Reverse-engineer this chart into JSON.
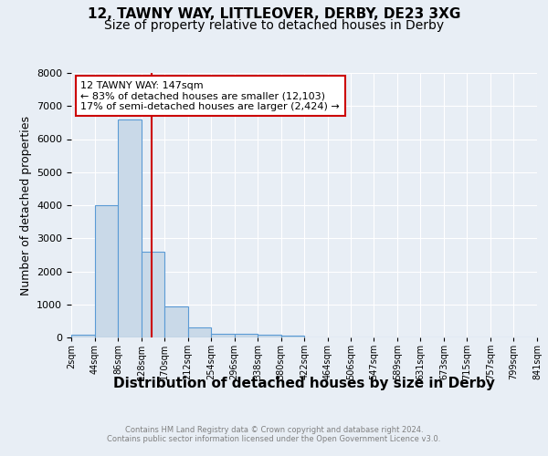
{
  "title1": "12, TAWNY WAY, LITTLEOVER, DERBY, DE23 3XG",
  "title2": "Size of property relative to detached houses in Derby",
  "xlabel": "Distribution of detached houses by size in Derby",
  "ylabel": "Number of detached properties",
  "annotation_line1": "12 TAWNY WAY: 147sqm",
  "annotation_line2": "← 83% of detached houses are smaller (12,103)",
  "annotation_line3": "17% of semi-detached houses are larger (2,424) →",
  "bin_edges": [
    2,
    44,
    86,
    128,
    170,
    212,
    254,
    296,
    338,
    380,
    422,
    464,
    506,
    547,
    589,
    631,
    673,
    715,
    757,
    799,
    841
  ],
  "bar_heights": [
    75,
    4000,
    6600,
    2600,
    950,
    300,
    120,
    100,
    75,
    50,
    0,
    0,
    0,
    0,
    0,
    0,
    0,
    0,
    0,
    0
  ],
  "bar_color": "#c9d9e8",
  "bar_edge_color": "#5b9bd5",
  "vline_x": 147,
  "vline_color": "#cc0000",
  "ylim": [
    0,
    8000
  ],
  "yticks": [
    0,
    1000,
    2000,
    3000,
    4000,
    5000,
    6000,
    7000,
    8000
  ],
  "background_color": "#e8eef5",
  "grid_color": "#ffffff",
  "title1_fontsize": 11,
  "title2_fontsize": 10,
  "xlabel_fontsize": 11,
  "ylabel_fontsize": 9,
  "footer1": "Contains HM Land Registry data © Crown copyright and database right 2024.",
  "footer2": "Contains public sector information licensed under the Open Government Licence v3.0."
}
